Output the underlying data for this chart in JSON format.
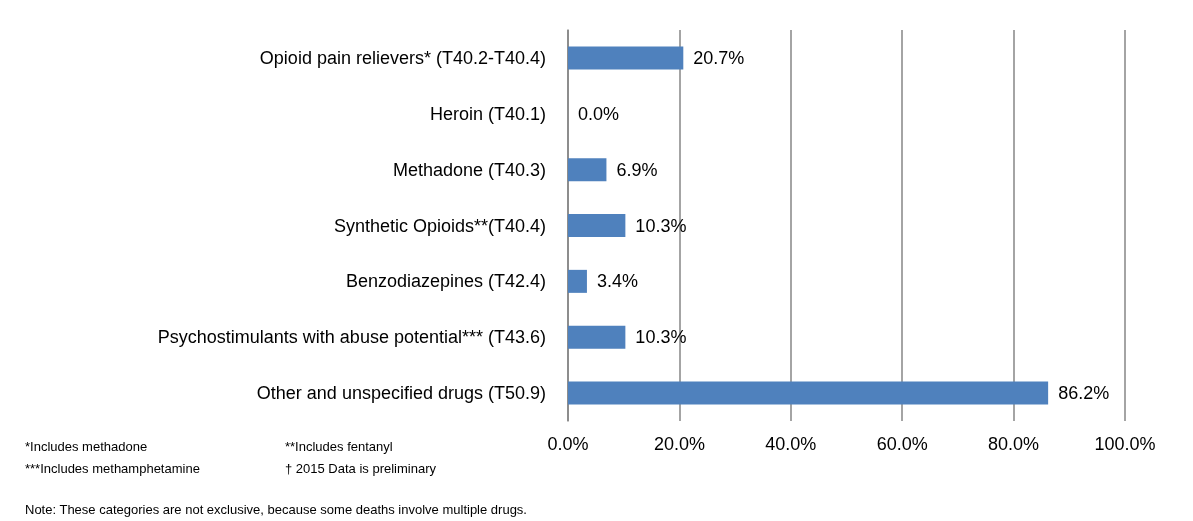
{
  "chart_data": {
    "type": "bar",
    "orientation": "horizontal",
    "categories": [
      "Opioid pain relievers* (T40.2-T40.4)",
      "Heroin (T40.1)",
      "Methadone (T40.3)",
      "Synthetic Opioids**(T40.4)",
      "Benzodiazepines (T42.4)",
      "Psychostimulants with abuse potential*** (T43.6)",
      "Other and unspecified drugs (T50.9)"
    ],
    "values": [
      20.7,
      0.0,
      6.9,
      10.3,
      3.4,
      10.3,
      86.2
    ],
    "value_labels": [
      "20.7%",
      "0.0%",
      "6.9%",
      "10.3%",
      "3.4%",
      "10.3%",
      "86.2%"
    ],
    "color": "#4f81bd",
    "xlim": [
      0,
      100
    ],
    "xticks": [
      {
        "value": 0,
        "label": "0.0%"
      },
      {
        "value": 20,
        "label": "20.0%"
      },
      {
        "value": 40,
        "label": "40.0%"
      },
      {
        "value": 60,
        "label": "60.0%"
      },
      {
        "value": 80,
        "label": "80.0%"
      },
      {
        "value": 100,
        "label": "100.0%"
      }
    ],
    "grid": "x",
    "annotations": [
      "*Includes methadone",
      "**Includes fentanyl",
      "***Includes methamphetamine",
      "† 2015 Data is preliminary",
      "Note: These categories are not exclusive, because some deaths involve multiple drugs."
    ]
  }
}
